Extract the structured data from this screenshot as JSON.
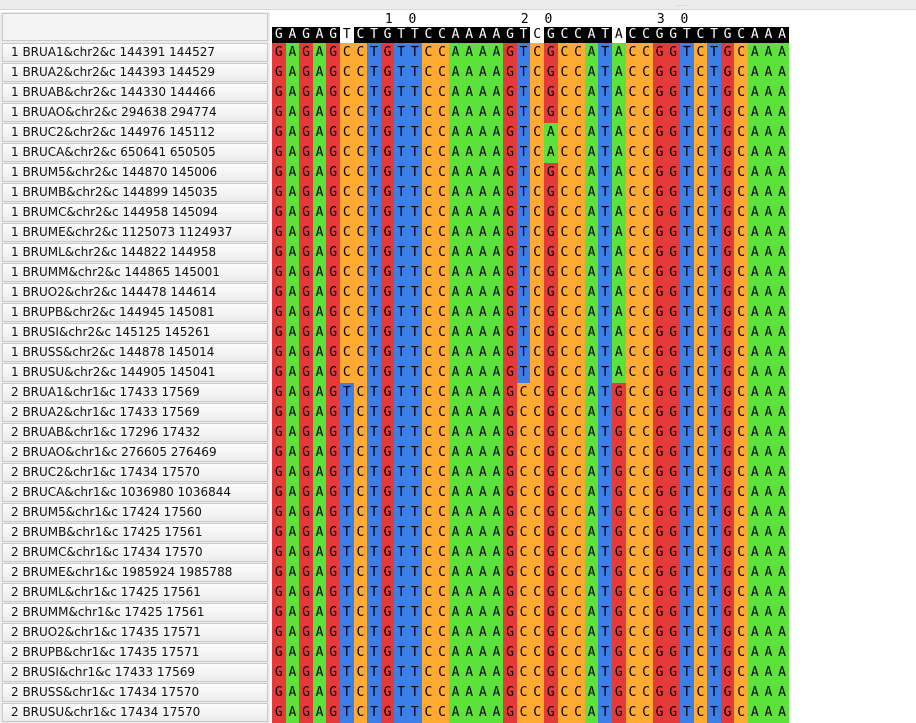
{
  "colors": {
    "A": "#5ce23a",
    "C": "#ffaa33",
    "G": "#e53a3a",
    "T": "#3d7fe8",
    "header_background": "#000000"
  },
  "ruler": [
    {
      "label": "1 0",
      "col": 9
    },
    {
      "label": "2 0",
      "col": 19
    },
    {
      "label": "3 0",
      "col": 29
    }
  ],
  "consensus": {
    "sequence": "GAGAGTCTGTTCCAAAAGTCGCCATACCGGTCTGCAAA",
    "highlight_columns": [
      5,
      19,
      25
    ]
  },
  "rows": [
    {
      "name": "1 BRUA1&chr2&c 144391 144527",
      "seq": "GAGAGCCTGTTCCAAAAGTCGCCATACCGGTCTGCAAA"
    },
    {
      "name": "1 BRUA2&chr2&c 144393 144529",
      "seq": "GAGAGCCTGTTCCAAAAGTCGCCATACCGGTCTGCAAA"
    },
    {
      "name": "1 BRUAB&chr2&c 144330 144466",
      "seq": "GAGAGCCTGTTCCAAAAGTCGCCATACCGGTCTGCAAA"
    },
    {
      "name": "1 BRUAO&chr2&c 294638 294774",
      "seq": "GAGAGCCTGTTCCAAAAGTCGCCATACCGGTCTGCAAA"
    },
    {
      "name": "1 BRUC2&chr2&c 144976 145112",
      "seq": "GAGAGCCTGTTCCAAAAGTCACCATACCGGTCTGCAAA"
    },
    {
      "name": "1 BRUCA&chr2&c 650641 650505",
      "seq": "GAGAGCCTGTTCCAAAAGTCACCATACCGGTCTGCAAA"
    },
    {
      "name": "1 BRUM5&chr2&c 144870 145006",
      "seq": "GAGAGCCTGTTCCAAAAGTCGCCATACCGGTCTGCAAA"
    },
    {
      "name": "1 BRUMB&chr2&c 144899 145035",
      "seq": "GAGAGCCTGTTCCAAAAGTCGCCATACCGGTCTGCAAA"
    },
    {
      "name": "1 BRUMC&chr2&c 144958 145094",
      "seq": "GAGAGCCTGTTCCAAAAGTCGCCATACCGGTCTGCAAA"
    },
    {
      "name": "1 BRUME&chr2&c 1125073 1124937",
      "seq": "GAGAGCCTGTTCCAAAAGTCGCCATACCGGTCTGCAAA"
    },
    {
      "name": "1 BRUML&chr2&c 144822 144958",
      "seq": "GAGAGCCTGTTCCAAAAGTCGCCATACCGGTCTGCAAA"
    },
    {
      "name": "1 BRUMM&chr2&c 144865 145001",
      "seq": "GAGAGCCTGTTCCAAAAGTCGCCATACCGGTCTGCAAA"
    },
    {
      "name": "1 BRUO2&chr2&c 144478 144614",
      "seq": "GAGAGCCTGTTCCAAAAGTCGCCATACCGGTCTGCAAA"
    },
    {
      "name": "1 BRUPB&chr2&c 144945 145081",
      "seq": "GAGAGCCTGTTCCAAAAGTCGCCATACCGGTCTGCAAA"
    },
    {
      "name": "1 BRUSI&chr2&c 145125 145261",
      "seq": "GAGAGCCTGTTCCAAAAGTCGCCATACCGGTCTGCAAA"
    },
    {
      "name": "1 BRUSS&chr2&c 144878 145014",
      "seq": "GAGAGCCTGTTCCAAAAGTCGCCATACCGGTCTGCAAA"
    },
    {
      "name": "1 BRUSU&chr2&c 144905 145041",
      "seq": "GAGAGCCTGTTCCAAAAGTCGCCATACCGGTCTGCAAA"
    },
    {
      "name": "2 BRUA1&chr1&c 17433 17569",
      "seq": "GAGAGTCTGTTCCAAAAGCCGCCATGCCGGTCTGCAAA"
    },
    {
      "name": "2 BRUA2&chr1&c 17433 17569",
      "seq": "GAGAGTCTGTTCCAAAAGCCGCCATGCCGGTCTGCAAA"
    },
    {
      "name": "2 BRUAB&chr1&c 17296 17432",
      "seq": "GAGAGTCTGTTCCAAAAGCCGCCATGCCGGTCTGCAAA"
    },
    {
      "name": "2 BRUAO&chr1&c 276605 276469",
      "seq": "GAGAGTCTGTTCCAAAAGCCGCCATGCCGGTCTGCAAA"
    },
    {
      "name": "2 BRUC2&chr1&c 17434 17570",
      "seq": "GAGAGTCTGTTCCAAAAGCCGCCATGCCGGTCTGCAAA"
    },
    {
      "name": "2 BRUCA&chr1&c 1036980 1036844",
      "seq": "GAGAGTCTGTTCCAAAAGCCGCCATGCCGGTCTGCAAA"
    },
    {
      "name": "2 BRUM5&chr1&c 17424 17560",
      "seq": "GAGAGTCTGTTCCAAAAGCCGCCATGCCGGTCTGCAAA"
    },
    {
      "name": "2 BRUMB&chr1&c 17425 17561",
      "seq": "GAGAGTCTGTTCCAAAAGCCGCCATGCCGGTCTGCAAA"
    },
    {
      "name": "2 BRUMC&chr1&c 17434 17570",
      "seq": "GAGAGTCTGTTCCAAAAGCCGCCATGCCGGTCTGCAAA"
    },
    {
      "name": "2 BRUME&chr1&c 1985924 1985788",
      "seq": "GAGAGTCTGTTCCAAAAGCCGCCATGCCGGTCTGCAAA"
    },
    {
      "name": "2 BRUML&chr1&c 17425 17561",
      "seq": "GAGAGTCTGTTCCAAAAGCCGCCATGCCGGTCTGCAAA"
    },
    {
      "name": "2 BRUMM&chr1&c 17425 17561",
      "seq": "GAGAGTCTGTTCCAAAAGCCGCCATGCCGGTCTGCAAA"
    },
    {
      "name": "2 BRUO2&chr1&c 17435 17571",
      "seq": "GAGAGTCTGTTCCAAAAGCCGCCATGCCGGTCTGCAAA"
    },
    {
      "name": "2 BRUPB&chr1&c 17435 17571",
      "seq": "GAGAGTCTGTTCCAAAAGCCGCCATGCCGGTCTGCAAA"
    },
    {
      "name": "2 BRUSI&chr1&c 17433 17569",
      "seq": "GAGAGTCTGTTCCAAAAGCCGCCATGCCGGTCTGCAAA"
    },
    {
      "name": "2 BRUSS&chr1&c 17434 17570",
      "seq": "GAGAGTCTGTTCCAAAAGCCGCCATGCCGGTCTGCAAA"
    },
    {
      "name": "2 BRUSU&chr1&c 17434 17570",
      "seq": "GAGAGTCTGTTCCAAAAGCCGCCATGCCGGTCTGCAAA"
    }
  ]
}
